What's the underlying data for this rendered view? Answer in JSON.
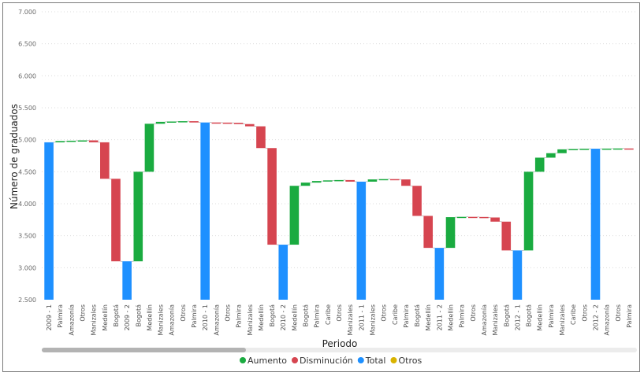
{
  "chart_data": {
    "type": "waterfall",
    "ylabel": "Número de graduados",
    "xlabel": "Periodo",
    "ylim": [
      2500,
      7000
    ],
    "yticks": [
      "2.500",
      "3.000",
      "3.500",
      "4.000",
      "4.500",
      "5.000",
      "5.500",
      "6.000",
      "6.500",
      "7.000"
    ],
    "ytick_values": [
      2500,
      3000,
      3500,
      4000,
      4500,
      5000,
      5500,
      6000,
      6500,
      7000
    ],
    "grid": true,
    "legend_position": "bottom",
    "colors": {
      "Aumento": "#1aab40",
      "Disminución": "#d64550",
      "Total": "#1e90ff",
      "Otros": "#d9b300"
    },
    "legend": [
      "Aumento",
      "Disminución",
      "Total",
      "Otros"
    ],
    "bars": [
      {
        "label": "2009 - 1",
        "kind": "Total",
        "start": 2500,
        "end": 4960
      },
      {
        "label": "Palmira",
        "kind": "Aumento",
        "start": 4960,
        "end": 4980
      },
      {
        "label": "Amazonía",
        "kind": "Aumento",
        "start": 4980,
        "end": 4985
      },
      {
        "label": "Otros",
        "kind": "Aumento",
        "start": 4985,
        "end": 4990
      },
      {
        "label": "Manizales",
        "kind": "Disminución",
        "start": 4990,
        "end": 4960
      },
      {
        "label": "Medellín",
        "kind": "Disminución",
        "start": 4960,
        "end": 4390
      },
      {
        "label": "Bogotá",
        "kind": "Disminución",
        "start": 4390,
        "end": 3100
      },
      {
        "label": "2009 - 2",
        "kind": "Total",
        "start": 2500,
        "end": 3100
      },
      {
        "label": "Bogotá",
        "kind": "Aumento",
        "start": 3100,
        "end": 4500
      },
      {
        "label": "Medellín",
        "kind": "Aumento",
        "start": 4500,
        "end": 5250
      },
      {
        "label": "Manizales",
        "kind": "Aumento",
        "start": 5250,
        "end": 5280
      },
      {
        "label": "Amazonía",
        "kind": "Aumento",
        "start": 5280,
        "end": 5285
      },
      {
        "label": "Otros",
        "kind": "Aumento",
        "start": 5285,
        "end": 5290
      },
      {
        "label": "Palmira",
        "kind": "Disminución",
        "start": 5290,
        "end": 5270
      },
      {
        "label": "2010 - 1",
        "kind": "Total",
        "start": 2500,
        "end": 5270
      },
      {
        "label": "Amazonía",
        "kind": "Disminución",
        "start": 5270,
        "end": 5268
      },
      {
        "label": "Otros",
        "kind": "Disminución",
        "start": 5268,
        "end": 5265
      },
      {
        "label": "Palmira",
        "kind": "Disminución",
        "start": 5265,
        "end": 5245
      },
      {
        "label": "Manizales",
        "kind": "Disminución",
        "start": 5245,
        "end": 5210
      },
      {
        "label": "Medellín",
        "kind": "Disminución",
        "start": 5210,
        "end": 4870
      },
      {
        "label": "Bogotá",
        "kind": "Disminución",
        "start": 4870,
        "end": 3360
      },
      {
        "label": "2010 - 2",
        "kind": "Total",
        "start": 2500,
        "end": 3360
      },
      {
        "label": "Medellín",
        "kind": "Aumento",
        "start": 3360,
        "end": 4280
      },
      {
        "label": "Bogotá",
        "kind": "Aumento",
        "start": 4280,
        "end": 4330
      },
      {
        "label": "Palmira",
        "kind": "Aumento",
        "start": 4330,
        "end": 4355
      },
      {
        "label": "Caribe",
        "kind": "Aumento",
        "start": 4355,
        "end": 4365
      },
      {
        "label": "Otros",
        "kind": "Aumento",
        "start": 4365,
        "end": 4370
      },
      {
        "label": "Manizales",
        "kind": "Disminución",
        "start": 4370,
        "end": 4345
      },
      {
        "label": "2011 - 1",
        "kind": "Total",
        "start": 2500,
        "end": 4345
      },
      {
        "label": "Manizales",
        "kind": "Aumento",
        "start": 4345,
        "end": 4380
      },
      {
        "label": "Otros",
        "kind": "Aumento",
        "start": 4380,
        "end": 4385
      },
      {
        "label": "Caribe",
        "kind": "Disminución",
        "start": 4385,
        "end": 4380
      },
      {
        "label": "Palmira",
        "kind": "Disminución",
        "start": 4380,
        "end": 4280
      },
      {
        "label": "Bogotá",
        "kind": "Disminución",
        "start": 4280,
        "end": 3810
      },
      {
        "label": "Medellín",
        "kind": "Disminución",
        "start": 3810,
        "end": 3310
      },
      {
        "label": "2011 - 2",
        "kind": "Total",
        "start": 2500,
        "end": 3310
      },
      {
        "label": "Medellín",
        "kind": "Aumento",
        "start": 3310,
        "end": 3790
      },
      {
        "label": "Palmira",
        "kind": "Aumento",
        "start": 3790,
        "end": 3795
      },
      {
        "label": "Otros",
        "kind": "Disminución",
        "start": 3795,
        "end": 3793
      },
      {
        "label": "Amazonía",
        "kind": "Disminución",
        "start": 3793,
        "end": 3785
      },
      {
        "label": "Manizales",
        "kind": "Disminución",
        "start": 3785,
        "end": 3720
      },
      {
        "label": "Bogotá",
        "kind": "Disminución",
        "start": 3720,
        "end": 3270
      },
      {
        "label": "2012 - 1",
        "kind": "Total",
        "start": 2500,
        "end": 3270
      },
      {
        "label": "Bogotá",
        "kind": "Aumento",
        "start": 3270,
        "end": 4500
      },
      {
        "label": "Medellín",
        "kind": "Aumento",
        "start": 4500,
        "end": 4720
      },
      {
        "label": "Palmira",
        "kind": "Aumento",
        "start": 4720,
        "end": 4790
      },
      {
        "label": "Manizales",
        "kind": "Aumento",
        "start": 4790,
        "end": 4850
      },
      {
        "label": "Caribe",
        "kind": "Aumento",
        "start": 4850,
        "end": 4855
      },
      {
        "label": "Otros",
        "kind": "Aumento",
        "start": 4855,
        "end": 4860
      },
      {
        "label": "2012 - 2",
        "kind": "Total",
        "start": 2500,
        "end": 4860
      },
      {
        "label": "Amazonía",
        "kind": "Aumento",
        "start": 4860,
        "end": 4862
      },
      {
        "label": "Otros",
        "kind": "Aumento",
        "start": 4862,
        "end": 4864
      },
      {
        "label": "Palmira",
        "kind": "Disminución",
        "start": 4864,
        "end": 4850
      }
    ]
  }
}
